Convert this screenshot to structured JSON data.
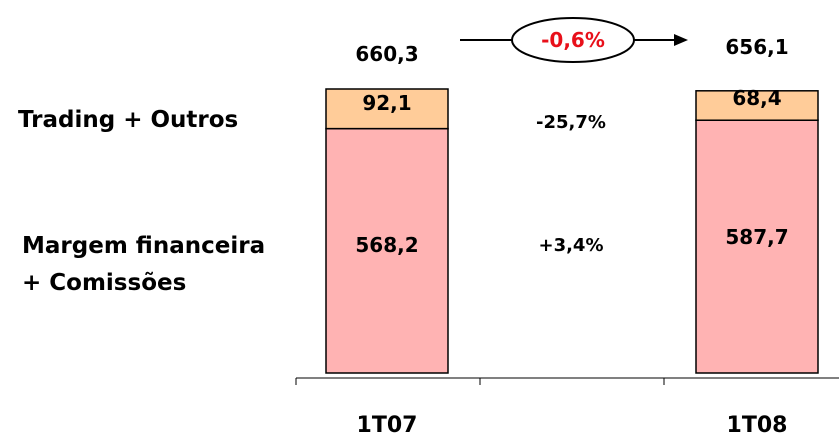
{
  "chart_data": {
    "type": "stacked_bar",
    "categories": [
      "1T07",
      "1T08"
    ],
    "series": [
      {
        "name": "Margem financeira + Comissões",
        "label_lines": [
          "Margem financeira",
          "+ Comissões"
        ],
        "values": [
          568.2,
          587.7
        ],
        "labels": [
          "568,2",
          "587,7"
        ],
        "change": "+3,4%",
        "color": "#ffb3b3"
      },
      {
        "name": "Trading + Outros",
        "label_lines": [
          "Trading + Outros"
        ],
        "values": [
          92.1,
          68.4
        ],
        "labels": [
          "92,1",
          "68,4"
        ],
        "change": "-25,7%",
        "color": "#ffcc99"
      }
    ],
    "totals": [
      660.3,
      656.1
    ],
    "total_labels": [
      "660,3",
      "656,1"
    ],
    "growth_label": "-0,6%",
    "growth_color": "#e8101a",
    "ylim": [
      0,
      660.3
    ],
    "bar_stroke": "#000000"
  }
}
